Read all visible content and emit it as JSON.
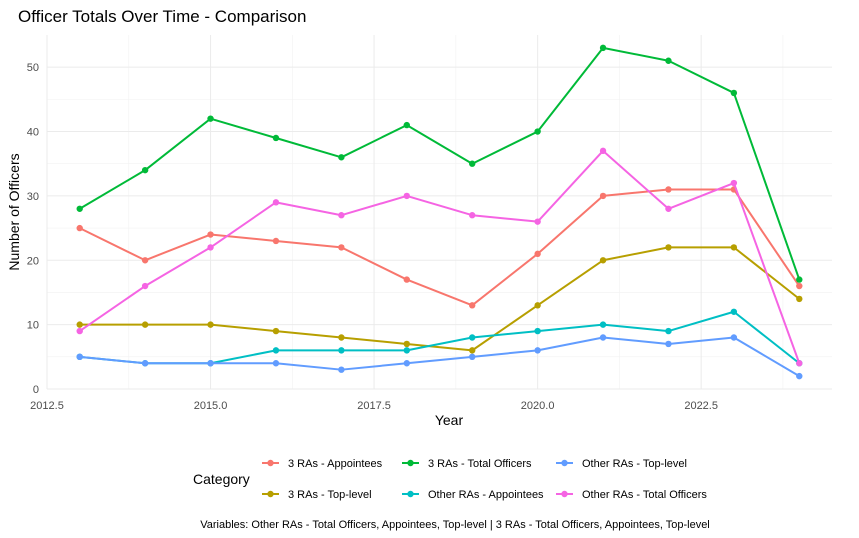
{
  "chart_data": {
    "type": "line",
    "title": "Officer Totals Over Time - Comparison",
    "xlabel": "Year",
    "ylabel": "Number of Officers",
    "xlim": [
      2012.5,
      2024.5
    ],
    "ylim": [
      0,
      55
    ],
    "x_ticks": [
      "2012.5",
      "2015.0",
      "2017.5",
      "2020.0",
      "2022.5"
    ],
    "y_ticks": [
      "0",
      "10",
      "20",
      "30",
      "40",
      "50"
    ],
    "grid": true,
    "legend_title": "Category",
    "legend_position": "bottom",
    "caption": "Variables: Other RAs - Total Officers, Appointees, Top-level | 3 RAs - Total Officers, Appointees, Top-level",
    "x": [
      2013,
      2014,
      2015,
      2016,
      2017,
      2018,
      2019,
      2020,
      2021,
      2022,
      2023,
      2024
    ],
    "series": [
      {
        "name": "3 RAs - Appointees",
        "color": "#F8766D",
        "values": [
          25,
          20,
          24,
          23,
          22,
          17,
          13,
          21,
          30,
          31,
          31,
          16
        ]
      },
      {
        "name": "3 RAs - Top-level",
        "color": "#B79F00",
        "values": [
          10,
          10,
          10,
          9,
          8,
          7,
          6,
          13,
          20,
          22,
          22,
          14
        ]
      },
      {
        "name": "3 RAs - Total Officers",
        "color": "#00BA38",
        "values": [
          28,
          34,
          42,
          39,
          36,
          41,
          35,
          40,
          53,
          51,
          46,
          17
        ]
      },
      {
        "name": "Other RAs - Appointees",
        "color": "#00BFC4",
        "values": [
          5,
          4,
          4,
          6,
          6,
          6,
          8,
          9,
          10,
          9,
          12,
          4
        ]
      },
      {
        "name": "Other RAs - Top-level",
        "color": "#619CFF",
        "values": [
          5,
          4,
          4,
          4,
          3,
          4,
          5,
          6,
          8,
          7,
          8,
          2
        ]
      },
      {
        "name": "Other RAs - Total Officers",
        "color": "#F564E3",
        "values": [
          9,
          16,
          22,
          29,
          27,
          30,
          27,
          26,
          37,
          28,
          32,
          4
        ]
      }
    ],
    "legend_order": [
      0,
      2,
      4,
      1,
      3,
      5
    ]
  }
}
